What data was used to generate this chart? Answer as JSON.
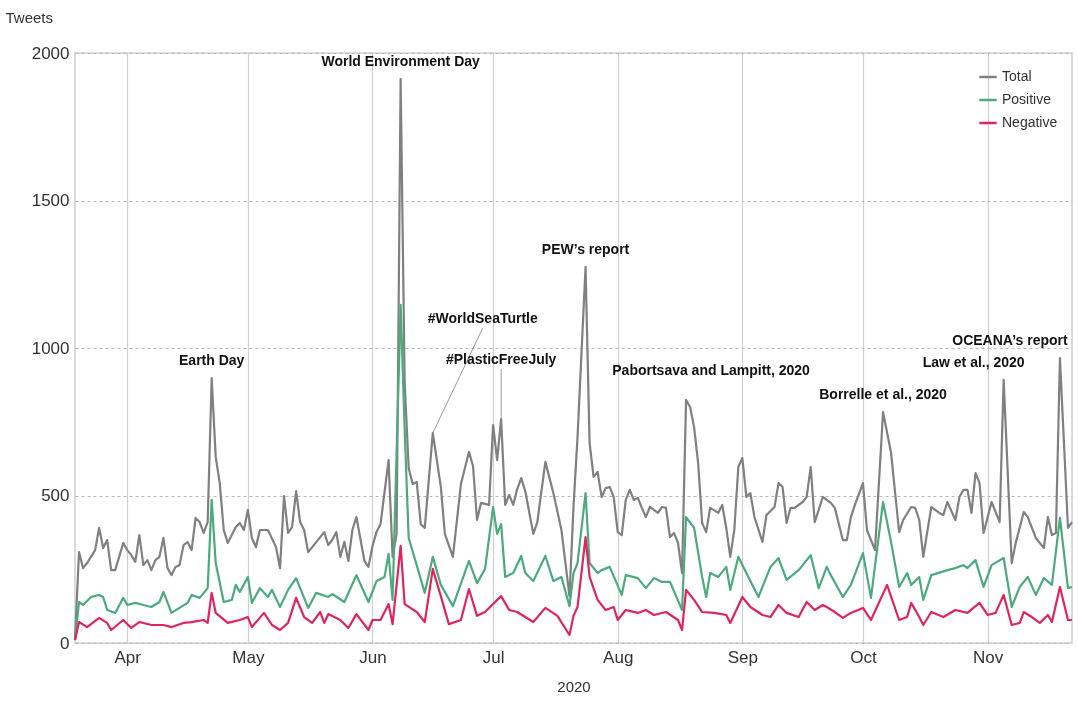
{
  "chart_data": {
    "type": "line",
    "xlabel": "2020",
    "ylabel": "Tweets",
    "xlim": [
      "2020-03-19",
      "2020-11-22"
    ],
    "xticks": [
      {
        "value": "2020-04-01",
        "label": "Apr"
      },
      {
        "value": "2020-05-01",
        "label": "May"
      },
      {
        "value": "2020-06-01",
        "label": "Jun"
      },
      {
        "value": "2020-07-01",
        "label": "Jul"
      },
      {
        "value": "2020-08-01",
        "label": "Aug"
      },
      {
        "value": "2020-09-01",
        "label": "Sep"
      },
      {
        "value": "2020-10-01",
        "label": "Oct"
      },
      {
        "value": "2020-11-01",
        "label": "Nov"
      }
    ],
    "ylim": [
      0,
      2000
    ],
    "yticks": [
      0,
      500,
      1000,
      1500,
      2000
    ],
    "grid": true,
    "legend": "top right",
    "series": [
      {
        "name": "Total",
        "color": "#808080",
        "x": [
          "2020-03-19",
          "2020-03-20",
          "2020-03-21",
          "2020-03-22",
          "2020-03-24",
          "2020-03-25",
          "2020-03-26",
          "2020-03-27",
          "2020-03-28",
          "2020-03-29",
          "2020-03-31",
          "2020-04-01",
          "2020-04-02",
          "2020-04-03",
          "2020-04-04",
          "2020-04-05",
          "2020-04-06",
          "2020-04-07",
          "2020-04-08",
          "2020-04-09",
          "2020-04-10",
          "2020-04-11",
          "2020-04-12",
          "2020-04-13",
          "2020-04-14",
          "2020-04-15",
          "2020-04-16",
          "2020-04-17",
          "2020-04-18",
          "2020-04-19",
          "2020-04-20",
          "2020-04-21",
          "2020-04-22",
          "2020-04-23",
          "2020-04-24",
          "2020-04-25",
          "2020-04-26",
          "2020-04-28",
          "2020-04-29",
          "2020-04-30",
          "2020-05-01",
          "2020-05-02",
          "2020-05-03",
          "2020-05-04",
          "2020-05-06",
          "2020-05-08",
          "2020-05-09",
          "2020-05-10",
          "2020-05-11",
          "2020-05-12",
          "2020-05-13",
          "2020-05-14",
          "2020-05-15",
          "2020-05-16",
          "2020-05-17",
          "2020-05-18",
          "2020-05-20",
          "2020-05-21",
          "2020-05-22",
          "2020-05-23",
          "2020-05-24",
          "2020-05-25",
          "2020-05-26",
          "2020-05-27",
          "2020-05-28",
          "2020-05-30",
          "2020-05-31",
          "2020-06-01",
          "2020-06-02",
          "2020-06-03",
          "2020-06-05",
          "2020-06-06",
          "2020-06-07",
          "2020-06-08",
          "2020-06-09",
          "2020-06-10",
          "2020-06-11",
          "2020-06-12",
          "2020-06-13",
          "2020-06-14",
          "2020-06-16",
          "2020-06-18",
          "2020-06-19",
          "2020-06-21",
          "2020-06-23",
          "2020-06-25",
          "2020-06-26",
          "2020-06-27",
          "2020-06-28",
          "2020-06-30",
          "2020-07-01",
          "2020-07-02",
          "2020-07-03",
          "2020-07-04",
          "2020-07-05",
          "2020-07-06",
          "2020-07-07",
          "2020-07-08",
          "2020-07-09",
          "2020-07-11",
          "2020-07-12",
          "2020-07-14",
          "2020-07-16",
          "2020-07-18",
          "2020-07-20",
          "2020-07-21",
          "2020-07-22",
          "2020-07-24",
          "2020-07-25",
          "2020-07-26",
          "2020-07-27",
          "2020-07-28",
          "2020-07-29",
          "2020-07-30",
          "2020-07-31",
          "2020-08-01",
          "2020-08-02",
          "2020-08-03",
          "2020-08-04",
          "2020-08-05",
          "2020-08-06",
          "2020-08-07",
          "2020-08-08",
          "2020-08-09",
          "2020-08-11",
          "2020-08-12",
          "2020-08-13",
          "2020-08-14",
          "2020-08-15",
          "2020-08-16",
          "2020-08-17",
          "2020-08-18",
          "2020-08-19",
          "2020-08-20",
          "2020-08-21",
          "2020-08-22",
          "2020-08-23",
          "2020-08-24",
          "2020-08-26",
          "2020-08-27",
          "2020-08-28",
          "2020-08-29",
          "2020-08-30",
          "2020-08-31",
          "2020-09-01",
          "2020-09-02",
          "2020-09-03",
          "2020-09-04",
          "2020-09-06",
          "2020-09-07",
          "2020-09-09",
          "2020-09-10",
          "2020-09-11",
          "2020-09-12",
          "2020-09-13",
          "2020-09-14",
          "2020-09-16",
          "2020-09-17",
          "2020-09-18",
          "2020-09-19",
          "2020-09-20",
          "2020-09-21",
          "2020-09-23",
          "2020-09-24",
          "2020-09-26",
          "2020-09-27",
          "2020-09-28",
          "2020-09-29",
          "2020-10-01",
          "2020-10-02",
          "2020-10-04",
          "2020-10-06",
          "2020-10-08",
          "2020-10-10",
          "2020-10-11",
          "2020-10-13",
          "2020-10-14",
          "2020-10-15",
          "2020-10-16",
          "2020-10-18",
          "2020-10-20",
          "2020-10-21",
          "2020-10-22",
          "2020-10-24",
          "2020-10-25",
          "2020-10-26",
          "2020-10-27",
          "2020-10-28",
          "2020-10-29",
          "2020-10-30",
          "2020-10-31",
          "2020-11-02",
          "2020-11-04",
          "2020-11-05",
          "2020-11-07",
          "2020-11-08",
          "2020-11-10",
          "2020-11-11",
          "2020-11-13",
          "2020-11-15",
          "2020-11-16",
          "2020-11-17",
          "2020-11-18",
          "2020-11-19",
          "2020-11-21",
          "2020-11-22"
        ],
        "values": [
          10,
          308,
          254,
          271,
          315,
          390,
          322,
          349,
          247,
          247,
          339,
          315,
          298,
          275,
          366,
          264,
          281,
          247,
          281,
          292,
          356,
          254,
          230,
          258,
          264,
          332,
          342,
          315,
          424,
          410,
          373,
          410,
          898,
          631,
          542,
          383,
          339,
          393,
          407,
          383,
          451,
          356,
          325,
          383,
          383,
          325,
          254,
          498,
          373,
          393,
          515,
          410,
          383,
          308,
          325,
          342,
          376,
          332,
          350,
          376,
          292,
          343,
          278,
          383,
          427,
          278,
          258,
          329,
          376,
          403,
          620,
          292,
          370,
          1912,
          885,
          593,
          539,
          546,
          403,
          390,
          712,
          529,
          370,
          292,
          539,
          648,
          600,
          417,
          475,
          468,
          739,
          620,
          759,
          468,
          502,
          468,
          522,
          559,
          515,
          370,
          410,
          614,
          508,
          383,
          159,
          461,
          698,
          1275,
          678,
          563,
          580,
          495,
          525,
          529,
          495,
          376,
          366,
          485,
          519,
          485,
          492,
          458,
          427,
          461,
          441,
          461,
          458,
          359,
          373,
          339,
          237,
          824,
          800,
          732,
          610,
          407,
          376,
          458,
          441,
          468,
          390,
          292,
          383,
          597,
          627,
          495,
          508,
          427,
          343,
          434,
          461,
          542,
          529,
          407,
          458,
          458,
          478,
          495,
          597,
          410,
          451,
          495,
          475,
          458,
          349,
          349,
          427,
          468,
          542,
          383,
          315,
          783,
          644,
          376,
          417,
          461,
          458,
          417,
          292,
          461,
          441,
          434,
          478,
          417,
          495,
          519,
          519,
          441,
          576,
          542,
          373,
          478,
          410,
          892,
          271,
          339,
          444,
          427,
          356,
          322,
          427,
          366,
          373,
          966,
          390,
          410
        ]
      },
      {
        "name": "Positive",
        "color": "#4caa7c",
        "x": [
          "2020-03-19",
          "2020-03-20",
          "2020-03-21",
          "2020-03-23",
          "2020-03-25",
          "2020-03-26",
          "2020-03-27",
          "2020-03-29",
          "2020-03-31",
          "2020-04-01",
          "2020-04-03",
          "2020-04-05",
          "2020-04-07",
          "2020-04-09",
          "2020-04-10",
          "2020-04-12",
          "2020-04-14",
          "2020-04-16",
          "2020-04-17",
          "2020-04-19",
          "2020-04-21",
          "2020-04-22",
          "2020-04-23",
          "2020-04-25",
          "2020-04-27",
          "2020-04-28",
          "2020-04-29",
          "2020-05-01",
          "2020-05-02",
          "2020-05-04",
          "2020-05-06",
          "2020-05-07",
          "2020-05-09",
          "2020-05-11",
          "2020-05-13",
          "2020-05-16",
          "2020-05-18",
          "2020-05-21",
          "2020-05-22",
          "2020-05-25",
          "2020-05-28",
          "2020-05-31",
          "2020-06-02",
          "2020-06-04",
          "2020-06-05",
          "2020-06-06",
          "2020-06-08",
          "2020-06-09",
          "2020-06-10",
          "2020-06-12",
          "2020-06-14",
          "2020-06-16",
          "2020-06-18",
          "2020-06-21",
          "2020-06-25",
          "2020-06-27",
          "2020-06-29",
          "2020-07-01",
          "2020-07-02",
          "2020-07-03",
          "2020-07-04",
          "2020-07-06",
          "2020-07-08",
          "2020-07-09",
          "2020-07-11",
          "2020-07-14",
          "2020-07-16",
          "2020-07-18",
          "2020-07-20",
          "2020-07-21",
          "2020-07-22",
          "2020-07-24",
          "2020-07-25",
          "2020-07-27",
          "2020-07-28",
          "2020-07-30",
          "2020-08-02",
          "2020-08-03",
          "2020-08-06",
          "2020-08-08",
          "2020-08-10",
          "2020-08-12",
          "2020-08-14",
          "2020-08-17",
          "2020-08-18",
          "2020-08-20",
          "2020-08-22",
          "2020-08-23",
          "2020-08-24",
          "2020-08-26",
          "2020-08-28",
          "2020-08-29",
          "2020-08-31",
          "2020-09-02",
          "2020-09-05",
          "2020-09-08",
          "2020-09-10",
          "2020-09-12",
          "2020-09-15",
          "2020-09-18",
          "2020-09-20",
          "2020-09-22",
          "2020-09-23",
          "2020-09-26",
          "2020-09-28",
          "2020-10-01",
          "2020-10-03",
          "2020-10-06",
          "2020-10-08",
          "2020-10-10",
          "2020-10-12",
          "2020-10-13",
          "2020-10-15",
          "2020-10-16",
          "2020-10-18",
          "2020-10-22",
          "2020-10-24",
          "2020-10-26",
          "2020-10-27",
          "2020-10-29",
          "2020-10-31",
          "2020-11-02",
          "2020-11-05",
          "2020-11-07",
          "2020-11-09",
          "2020-11-11",
          "2020-11-13",
          "2020-11-15",
          "2020-11-17",
          "2020-11-19",
          "2020-11-21",
          "2020-11-22"
        ],
        "values": [
          10,
          139,
          129,
          156,
          163,
          156,
          112,
          102,
          153,
          129,
          136,
          129,
          122,
          139,
          173,
          102,
          119,
          136,
          163,
          153,
          186,
          485,
          271,
          139,
          146,
          197,
          173,
          224,
          136,
          186,
          156,
          180,
          122,
          180,
          220,
          119,
          170,
          156,
          166,
          139,
          230,
          139,
          210,
          224,
          302,
          146,
          1146,
          725,
          356,
          264,
          170,
          292,
          197,
          125,
          278,
          203,
          251,
          461,
          370,
          403,
          224,
          237,
          295,
          237,
          210,
          295,
          210,
          224,
          125,
          237,
          271,
          508,
          271,
          237,
          247,
          258,
          163,
          230,
          220,
          186,
          220,
          207,
          207,
          112,
          427,
          390,
          224,
          156,
          237,
          224,
          258,
          180,
          292,
          237,
          156,
          258,
          288,
          214,
          247,
          298,
          186,
          258,
          230,
          156,
          197,
          305,
          153,
          478,
          342,
          190,
          237,
          197,
          224,
          146,
          230,
          247,
          254,
          264,
          254,
          281,
          190,
          264,
          288,
          122,
          190,
          224,
          163,
          220,
          197,
          424,
          186,
          190
        ]
      },
      {
        "name": "Negative",
        "color": "#e0245e",
        "x": [
          "2020-03-19",
          "2020-03-20",
          "2020-03-22",
          "2020-03-25",
          "2020-03-27",
          "2020-03-28",
          "2020-03-31",
          "2020-04-02",
          "2020-04-04",
          "2020-04-07",
          "2020-04-10",
          "2020-04-12",
          "2020-04-15",
          "2020-04-17",
          "2020-04-20",
          "2020-04-21",
          "2020-04-22",
          "2020-04-23",
          "2020-04-26",
          "2020-04-29",
          "2020-05-01",
          "2020-05-02",
          "2020-05-05",
          "2020-05-07",
          "2020-05-09",
          "2020-05-11",
          "2020-05-13",
          "2020-05-15",
          "2020-05-17",
          "2020-05-19",
          "2020-05-20",
          "2020-05-21",
          "2020-05-24",
          "2020-05-26",
          "2020-05-28",
          "2020-05-31",
          "2020-06-01",
          "2020-06-03",
          "2020-06-05",
          "2020-06-06",
          "2020-06-08",
          "2020-06-09",
          "2020-06-12",
          "2020-06-14",
          "2020-06-16",
          "2020-06-18",
          "2020-06-20",
          "2020-06-23",
          "2020-06-25",
          "2020-06-27",
          "2020-06-29",
          "2020-07-01",
          "2020-07-03",
          "2020-07-05",
          "2020-07-07",
          "2020-07-11",
          "2020-07-14",
          "2020-07-17",
          "2020-07-20",
          "2020-07-21",
          "2020-07-22",
          "2020-07-24",
          "2020-07-25",
          "2020-07-27",
          "2020-07-29",
          "2020-07-31",
          "2020-08-01",
          "2020-08-03",
          "2020-08-06",
          "2020-08-08",
          "2020-08-10",
          "2020-08-13",
          "2020-08-16",
          "2020-08-17",
          "2020-08-18",
          "2020-08-20",
          "2020-08-22",
          "2020-08-25",
          "2020-08-28",
          "2020-08-29",
          "2020-09-01",
          "2020-09-03",
          "2020-09-06",
          "2020-09-08",
          "2020-09-10",
          "2020-09-12",
          "2020-09-15",
          "2020-09-17",
          "2020-09-19",
          "2020-09-21",
          "2020-09-22",
          "2020-09-24",
          "2020-09-26",
          "2020-09-28",
          "2020-10-01",
          "2020-10-03",
          "2020-10-07",
          "2020-10-10",
          "2020-10-12",
          "2020-10-13",
          "2020-10-15",
          "2020-10-16",
          "2020-10-18",
          "2020-10-21",
          "2020-10-24",
          "2020-10-27",
          "2020-10-30",
          "2020-11-01",
          "2020-11-03",
          "2020-11-05",
          "2020-11-07",
          "2020-11-09",
          "2020-11-10",
          "2020-11-12",
          "2020-11-14",
          "2020-11-16",
          "2020-11-17",
          "2020-11-19",
          "2020-11-21",
          "2020-11-22"
        ],
        "values": [
          10,
          71,
          54,
          85,
          68,
          44,
          78,
          51,
          71,
          61,
          61,
          54,
          68,
          71,
          78,
          68,
          170,
          102,
          68,
          78,
          88,
          54,
          102,
          61,
          44,
          68,
          153,
          88,
          68,
          105,
          68,
          98,
          78,
          51,
          98,
          44,
          78,
          78,
          132,
          64,
          329,
          132,
          105,
          71,
          251,
          159,
          64,
          78,
          183,
          92,
          105,
          132,
          159,
          112,
          105,
          71,
          119,
          92,
          27,
          92,
          122,
          359,
          224,
          146,
          112,
          122,
          78,
          112,
          102,
          112,
          95,
          105,
          78,
          44,
          180,
          146,
          105,
          102,
          95,
          68,
          156,
          122,
          95,
          88,
          129,
          102,
          88,
          139,
          112,
          129,
          122,
          105,
          85,
          102,
          119,
          78,
          197,
          78,
          88,
          136,
          88,
          61,
          105,
          88,
          112,
          102,
          136,
          95,
          102,
          163,
          61,
          68,
          105,
          88,
          68,
          95,
          71,
          190,
          78,
          78
        ]
      }
    ],
    "annotations": [
      {
        "text": "Earth Day",
        "x": "2020-04-22",
        "y": 898
      },
      {
        "text": "World Environment Day",
        "x": "2020-06-08",
        "y": 1912
      },
      {
        "text": "#WorldSeaTurtle",
        "x": "2020-06-16",
        "y": 712
      },
      {
        "text": "#PlasticFreeJuly",
        "x": "2020-07-03",
        "y": 759
      },
      {
        "text": "PEW’s report",
        "x": "2020-07-24",
        "y": 1275
      },
      {
        "text": "Pabortsava and Lampitt, 2020",
        "x": "2020-08-18",
        "y": 824
      },
      {
        "text": "Borrelle et al., 2020",
        "x": "2020-10-06",
        "y": 783
      },
      {
        "text": "Law et al., 2020",
        "x": "2020-11-05",
        "y": 892
      },
      {
        "text": "OCEANA’s report",
        "x": "2020-11-19",
        "y": 966
      }
    ]
  }
}
